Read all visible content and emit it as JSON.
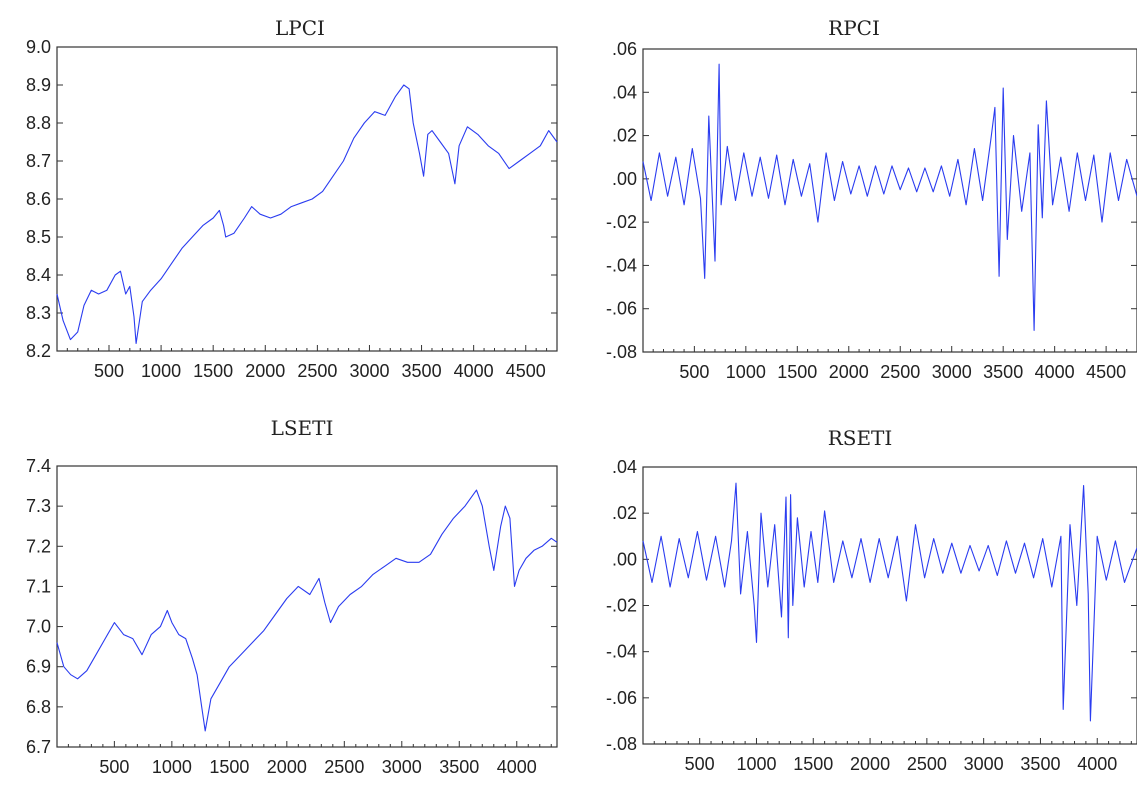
{
  "chart_data": [
    {
      "id": "lpci",
      "type": "line",
      "title": "LPCI",
      "xlabel": "",
      "ylabel": "",
      "xlim": [
        1,
        4800
      ],
      "ylim": [
        8.2,
        9.0
      ],
      "xticks": [
        500,
        1000,
        1500,
        2000,
        2500,
        3000,
        3500,
        4000,
        4500
      ],
      "xtick_labels": [
        "500",
        "1000",
        "1500",
        "2000",
        "2500",
        "3000",
        "3500",
        "4000",
        "4500"
      ],
      "yticks": [
        8.2,
        8.3,
        8.4,
        8.5,
        8.6,
        8.7,
        8.8,
        8.9,
        9.0
      ],
      "ytick_labels": [
        "8.2",
        "8.3",
        "8.4",
        "8.5",
        "8.6",
        "8.7",
        "8.8",
        "8.9",
        "9.0"
      ],
      "series_color": "#2a3cf0",
      "x": [
        1,
        60,
        130,
        200,
        260,
        330,
        400,
        480,
        560,
        610,
        660,
        700,
        740,
        760,
        820,
        900,
        1000,
        1100,
        1200,
        1300,
        1400,
        1500,
        1560,
        1600,
        1620,
        1700,
        1800,
        1870,
        1950,
        2050,
        2150,
        2250,
        2350,
        2450,
        2550,
        2650,
        2750,
        2850,
        2950,
        3050,
        3150,
        3250,
        3330,
        3380,
        3420,
        3480,
        3520,
        3560,
        3600,
        3680,
        3760,
        3820,
        3860,
        3940,
        4040,
        4140,
        4240,
        4340,
        4440,
        4540,
        4640,
        4720,
        4800
      ],
      "values": [
        8.35,
        8.28,
        8.23,
        8.25,
        8.32,
        8.36,
        8.35,
        8.36,
        8.4,
        8.41,
        8.35,
        8.37,
        8.29,
        8.22,
        8.33,
        8.36,
        8.39,
        8.43,
        8.47,
        8.5,
        8.53,
        8.55,
        8.57,
        8.53,
        8.5,
        8.51,
        8.55,
        8.58,
        8.56,
        8.55,
        8.56,
        8.58,
        8.59,
        8.6,
        8.62,
        8.66,
        8.7,
        8.76,
        8.8,
        8.83,
        8.82,
        8.87,
        8.9,
        8.89,
        8.8,
        8.72,
        8.66,
        8.77,
        8.78,
        8.75,
        8.72,
        8.64,
        8.74,
        8.79,
        8.77,
        8.74,
        8.72,
        8.68,
        8.7,
        8.72,
        8.74,
        8.78,
        8.75
      ]
    },
    {
      "id": "rpci",
      "type": "line",
      "title": "RPCI",
      "xlabel": "",
      "ylabel": "",
      "xlim": [
        1,
        4800
      ],
      "ylim": [
        -0.08,
        0.06
      ],
      "xticks": [
        500,
        1000,
        1500,
        2000,
        2500,
        3000,
        3500,
        4000,
        4500
      ],
      "xtick_labels": [
        "500",
        "1000",
        "1500",
        "2000",
        "2500",
        "3000",
        "3500",
        "4000",
        "4500"
      ],
      "yticks": [
        -0.08,
        -0.06,
        -0.04,
        -0.02,
        0.0,
        0.02,
        0.04,
        0.06
      ],
      "ytick_labels": [
        "-.08",
        "-.06",
        "-.04",
        "-.02",
        ".00",
        ".02",
        ".04",
        ".06"
      ],
      "series_color": "#2a3cf0",
      "x": [
        1,
        80,
        160,
        240,
        320,
        400,
        480,
        560,
        600,
        640,
        700,
        740,
        760,
        820,
        900,
        980,
        1060,
        1140,
        1220,
        1300,
        1380,
        1460,
        1540,
        1620,
        1700,
        1780,
        1860,
        1940,
        2020,
        2100,
        2180,
        2260,
        2340,
        2420,
        2500,
        2580,
        2660,
        2740,
        2820,
        2900,
        2980,
        3060,
        3140,
        3220,
        3300,
        3380,
        3420,
        3460,
        3500,
        3540,
        3600,
        3680,
        3760,
        3800,
        3840,
        3880,
        3920,
        3980,
        4060,
        4140,
        4220,
        4300,
        4380,
        4460,
        4540,
        4620,
        4700,
        4800
      ],
      "values": [
        0.008,
        -0.01,
        0.012,
        -0.008,
        0.01,
        -0.012,
        0.014,
        -0.009,
        -0.046,
        0.029,
        -0.038,
        0.053,
        -0.012,
        0.015,
        -0.01,
        0.012,
        -0.008,
        0.01,
        -0.009,
        0.011,
        -0.012,
        0.009,
        -0.008,
        0.007,
        -0.02,
        0.012,
        -0.01,
        0.008,
        -0.007,
        0.006,
        -0.008,
        0.006,
        -0.007,
        0.006,
        -0.005,
        0.005,
        -0.006,
        0.005,
        -0.006,
        0.006,
        -0.008,
        0.009,
        -0.012,
        0.014,
        -0.01,
        0.018,
        0.033,
        -0.045,
        0.042,
        -0.028,
        0.02,
        -0.015,
        0.012,
        -0.07,
        0.025,
        -0.018,
        0.036,
        -0.012,
        0.01,
        -0.015,
        0.012,
        -0.01,
        0.011,
        -0.02,
        0.012,
        -0.01,
        0.009,
        -0.008
      ]
    },
    {
      "id": "lseti",
      "type": "line",
      "title": "LSETI",
      "xlabel": "",
      "ylabel": "",
      "xlim": [
        1,
        4350
      ],
      "ylim": [
        6.7,
        7.4
      ],
      "xticks": [
        500,
        1000,
        1500,
        2000,
        2500,
        3000,
        3500,
        4000
      ],
      "xtick_labels": [
        "500",
        "1000",
        "1500",
        "2000",
        "2500",
        "3000",
        "3500",
        "4000"
      ],
      "yticks": [
        6.7,
        6.8,
        6.9,
        7.0,
        7.1,
        7.2,
        7.3,
        7.4
      ],
      "ytick_labels": [
        "6.7",
        "6.8",
        "6.9",
        "7.0",
        "7.1",
        "7.2",
        "7.3",
        "7.4"
      ],
      "series_color": "#2a3cf0",
      "x": [
        1,
        60,
        120,
        180,
        260,
        340,
        420,
        500,
        580,
        660,
        740,
        820,
        900,
        960,
        1000,
        1060,
        1120,
        1180,
        1220,
        1260,
        1290,
        1340,
        1420,
        1500,
        1600,
        1700,
        1800,
        1900,
        2000,
        2100,
        2200,
        2280,
        2330,
        2380,
        2450,
        2550,
        2650,
        2750,
        2850,
        2950,
        3050,
        3150,
        3250,
        3350,
        3450,
        3550,
        3650,
        3700,
        3760,
        3800,
        3860,
        3900,
        3940,
        3980,
        4020,
        4080,
        4150,
        4220,
        4300,
        4350
      ],
      "values": [
        6.96,
        6.9,
        6.88,
        6.87,
        6.89,
        6.93,
        6.97,
        7.01,
        6.98,
        6.97,
        6.93,
        6.98,
        7.0,
        7.04,
        7.01,
        6.98,
        6.97,
        6.92,
        6.88,
        6.8,
        6.74,
        6.82,
        6.86,
        6.9,
        6.93,
        6.96,
        6.99,
        7.03,
        7.07,
        7.1,
        7.08,
        7.12,
        7.06,
        7.01,
        7.05,
        7.08,
        7.1,
        7.13,
        7.15,
        7.17,
        7.16,
        7.16,
        7.18,
        7.23,
        7.27,
        7.3,
        7.34,
        7.3,
        7.2,
        7.14,
        7.25,
        7.3,
        7.27,
        7.1,
        7.14,
        7.17,
        7.19,
        7.2,
        7.22,
        7.21
      ]
    },
    {
      "id": "rseti",
      "type": "line",
      "title": "RSETI",
      "xlabel": "",
      "ylabel": "",
      "xlim": [
        1,
        4350
      ],
      "ylim": [
        -0.08,
        0.04
      ],
      "xticks": [
        500,
        1000,
        1500,
        2000,
        2500,
        3000,
        3500,
        4000
      ],
      "xtick_labels": [
        "500",
        "1000",
        "1500",
        "2000",
        "2500",
        "3000",
        "3500",
        "4000"
      ],
      "yticks": [
        -0.08,
        -0.06,
        -0.04,
        -0.02,
        0.0,
        0.02,
        0.04
      ],
      "ytick_labels": [
        "-.08",
        "-.06",
        "-.04",
        "-.02",
        ".00",
        ".02",
        ".04"
      ],
      "series_color": "#2a3cf0",
      "x": [
        1,
        80,
        160,
        240,
        320,
        400,
        480,
        560,
        640,
        720,
        780,
        820,
        860,
        920,
        980,
        1000,
        1040,
        1100,
        1160,
        1220,
        1260,
        1280,
        1300,
        1320,
        1360,
        1420,
        1480,
        1540,
        1600,
        1680,
        1760,
        1840,
        1920,
        2000,
        2080,
        2160,
        2240,
        2320,
        2400,
        2480,
        2560,
        2640,
        2720,
        2800,
        2880,
        2960,
        3040,
        3120,
        3200,
        3280,
        3360,
        3440,
        3520,
        3600,
        3680,
        3700,
        3760,
        3820,
        3880,
        3920,
        3940,
        4000,
        4080,
        4160,
        4240,
        4350
      ],
      "values": [
        0.008,
        -0.01,
        0.01,
        -0.012,
        0.009,
        -0.008,
        0.012,
        -0.009,
        0.01,
        -0.012,
        0.008,
        0.033,
        -0.015,
        0.012,
        -0.02,
        -0.036,
        0.02,
        -0.012,
        0.015,
        -0.025,
        0.027,
        -0.034,
        0.028,
        -0.02,
        0.018,
        -0.012,
        0.012,
        -0.01,
        0.021,
        -0.01,
        0.008,
        -0.008,
        0.009,
        -0.01,
        0.009,
        -0.008,
        0.01,
        -0.018,
        0.015,
        -0.008,
        0.009,
        -0.006,
        0.007,
        -0.006,
        0.006,
        -0.005,
        0.006,
        -0.007,
        0.008,
        -0.006,
        0.007,
        -0.008,
        0.009,
        -0.012,
        0.01,
        -0.065,
        0.015,
        -0.02,
        0.032,
        -0.015,
        -0.07,
        0.01,
        -0.009,
        0.008,
        -0.01,
        0.005
      ]
    }
  ]
}
